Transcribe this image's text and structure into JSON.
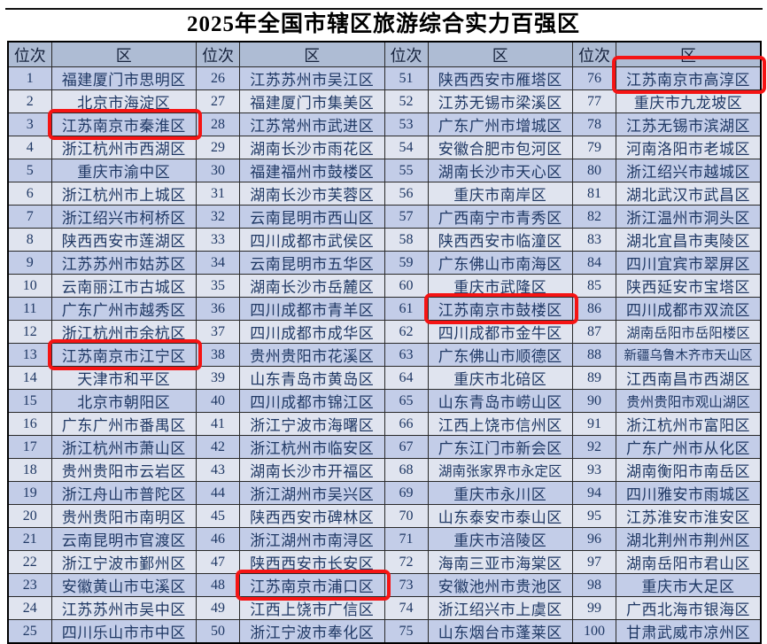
{
  "page_title": "2025年全国市辖区旅游综合实力百强区",
  "colors": {
    "header_bg": "#aebcd4",
    "row_blue": "#c3cde8",
    "row_light": "#e0e4ef",
    "cell_text": "#1f3864",
    "border": "#2a2a2a",
    "highlight_red": "#f51414"
  },
  "table": {
    "rank_header": "位次",
    "district_header": "区",
    "highlighted_ranks": [
      3,
      13,
      48,
      61,
      76
    ],
    "groups": [
      {
        "rows": [
          {
            "rank": "1",
            "district": "福建厦门市思明区"
          },
          {
            "rank": "2",
            "district": "北京市海淀区"
          },
          {
            "rank": "3",
            "district": "江苏南京市秦淮区"
          },
          {
            "rank": "4",
            "district": "浙江杭州市西湖区"
          },
          {
            "rank": "5",
            "district": "重庆市渝中区"
          },
          {
            "rank": "6",
            "district": "浙江杭州市上城区"
          },
          {
            "rank": "7",
            "district": "浙江绍兴市柯桥区"
          },
          {
            "rank": "8",
            "district": "陕西西安市莲湖区"
          },
          {
            "rank": "9",
            "district": "江苏苏州市姑苏区"
          },
          {
            "rank": "10",
            "district": "云南丽江市古城区"
          },
          {
            "rank": "11",
            "district": "广东广州市越秀区"
          },
          {
            "rank": "12",
            "district": "浙江杭州市余杭区"
          },
          {
            "rank": "13",
            "district": "江苏南京市江宁区"
          },
          {
            "rank": "14",
            "district": "天津市和平区"
          },
          {
            "rank": "15",
            "district": "北京市朝阳区"
          },
          {
            "rank": "16",
            "district": "广东广州市番禺区"
          },
          {
            "rank": "17",
            "district": "浙江杭州市萧山区"
          },
          {
            "rank": "18",
            "district": "贵州贵阳市云岩区"
          },
          {
            "rank": "19",
            "district": "浙江舟山市普陀区"
          },
          {
            "rank": "20",
            "district": "贵州贵阳市南明区"
          },
          {
            "rank": "21",
            "district": "云南昆明市官渡区"
          },
          {
            "rank": "22",
            "district": "浙江宁波市鄞州区"
          },
          {
            "rank": "23",
            "district": "安徽黄山市屯溪区"
          },
          {
            "rank": "24",
            "district": "江苏苏州市吴中区"
          },
          {
            "rank": "25",
            "district": "四川乐山市市中区"
          }
        ]
      },
      {
        "rows": [
          {
            "rank": "26",
            "district": "江苏苏州市吴江区"
          },
          {
            "rank": "27",
            "district": "福建厦门市集美区"
          },
          {
            "rank": "28",
            "district": "江苏常州市武进区"
          },
          {
            "rank": "29",
            "district": "湖南长沙市雨花区"
          },
          {
            "rank": "30",
            "district": "福建福州市鼓楼区"
          },
          {
            "rank": "31",
            "district": "湖南长沙市芙蓉区"
          },
          {
            "rank": "32",
            "district": "云南昆明市西山区"
          },
          {
            "rank": "33",
            "district": "四川成都市武侯区"
          },
          {
            "rank": "34",
            "district": "云南昆明市五华区"
          },
          {
            "rank": "35",
            "district": "湖南长沙市岳麓区"
          },
          {
            "rank": "36",
            "district": "四川成都市青羊区"
          },
          {
            "rank": "37",
            "district": "四川成都市成华区"
          },
          {
            "rank": "38",
            "district": "贵州贵阳市花溪区"
          },
          {
            "rank": "39",
            "district": "山东青岛市黄岛区"
          },
          {
            "rank": "40",
            "district": "四川成都市锦江区"
          },
          {
            "rank": "41",
            "district": "浙江宁波市海曙区"
          },
          {
            "rank": "42",
            "district": "浙江杭州市临安区"
          },
          {
            "rank": "43",
            "district": "湖南长沙市开福区"
          },
          {
            "rank": "44",
            "district": "浙江湖州市吴兴区"
          },
          {
            "rank": "45",
            "district": "陕西西安市碑林区"
          },
          {
            "rank": "46",
            "district": "浙江湖州市南浔区"
          },
          {
            "rank": "47",
            "district": "陕西西安市长安区"
          },
          {
            "rank": "48",
            "district": "江苏南京市浦口区"
          },
          {
            "rank": "49",
            "district": "江西上饶市广信区"
          },
          {
            "rank": "50",
            "district": "浙江宁波市奉化区"
          }
        ]
      },
      {
        "rows": [
          {
            "rank": "51",
            "district": "陕西西安市雁塔区"
          },
          {
            "rank": "52",
            "district": "江苏无锡市梁溪区"
          },
          {
            "rank": "53",
            "district": "广东广州市增城区"
          },
          {
            "rank": "54",
            "district": "安徽合肥市包河区"
          },
          {
            "rank": "55",
            "district": "湖南长沙市天心区"
          },
          {
            "rank": "56",
            "district": "重庆市南岸区"
          },
          {
            "rank": "57",
            "district": "广西南宁市青秀区"
          },
          {
            "rank": "58",
            "district": "陕西西安市临潼区"
          },
          {
            "rank": "59",
            "district": "广东佛山市南海区"
          },
          {
            "rank": "60",
            "district": "重庆市武隆区"
          },
          {
            "rank": "61",
            "district": "江苏南京市鼓楼区"
          },
          {
            "rank": "62",
            "district": "四川成都市金牛区"
          },
          {
            "rank": "63",
            "district": "广东佛山市顺德区"
          },
          {
            "rank": "64",
            "district": "重庆市北碚区"
          },
          {
            "rank": "65",
            "district": "山东青岛市崂山区"
          },
          {
            "rank": "66",
            "district": "江西上饶市信州区"
          },
          {
            "rank": "67",
            "district": "广东江门市新会区"
          },
          {
            "rank": "68",
            "district": "湖南张家界市永定区"
          },
          {
            "rank": "69",
            "district": "重庆市永川区"
          },
          {
            "rank": "70",
            "district": "山东泰安市泰山区"
          },
          {
            "rank": "71",
            "district": "重庆市涪陵区"
          },
          {
            "rank": "72",
            "district": "海南三亚市海棠区"
          },
          {
            "rank": "73",
            "district": "安徽池州市贵池区"
          },
          {
            "rank": "74",
            "district": "浙江绍兴市上虞区"
          },
          {
            "rank": "75",
            "district": "山东烟台市蓬莱区"
          }
        ]
      },
      {
        "rows": [
          {
            "rank": "76",
            "district": "江苏南京市高淳区"
          },
          {
            "rank": "77",
            "district": "重庆市九龙坡区"
          },
          {
            "rank": "78",
            "district": "江苏无锡市滨湖区"
          },
          {
            "rank": "79",
            "district": "河南洛阳市老城区"
          },
          {
            "rank": "80",
            "district": "浙江绍兴市越城区"
          },
          {
            "rank": "81",
            "district": "湖北武汉市武昌区"
          },
          {
            "rank": "82",
            "district": "浙江温州市洞头区"
          },
          {
            "rank": "83",
            "district": "湖北宜昌市夷陵区"
          },
          {
            "rank": "84",
            "district": "四川宜宾市翠屏区"
          },
          {
            "rank": "85",
            "district": "陕西延安市宝塔区"
          },
          {
            "rank": "86",
            "district": "四川成都市双流区"
          },
          {
            "rank": "87",
            "district": "湖南岳阳市岳阳楼区"
          },
          {
            "rank": "88",
            "district": "新疆乌鲁木齐市天山区"
          },
          {
            "rank": "89",
            "district": "江西南昌市西湖区"
          },
          {
            "rank": "90",
            "district": "贵州贵阳市观山湖区"
          },
          {
            "rank": "91",
            "district": "浙江杭州市富阳区"
          },
          {
            "rank": "92",
            "district": "广东广州市从化区"
          },
          {
            "rank": "93",
            "district": "湖南衡阳市南岳区"
          },
          {
            "rank": "94",
            "district": "四川雅安市雨城区"
          },
          {
            "rank": "95",
            "district": "江苏淮安市淮安区"
          },
          {
            "rank": "96",
            "district": "湖北荆州市荆州区"
          },
          {
            "rank": "97",
            "district": "湖南岳阳市君山区"
          },
          {
            "rank": "98",
            "district": "重庆市大足区"
          },
          {
            "rank": "99",
            "district": "广西北海市银海区"
          },
          {
            "rank": "100",
            "district": "甘肃武威市凉州区"
          }
        ]
      }
    ]
  }
}
